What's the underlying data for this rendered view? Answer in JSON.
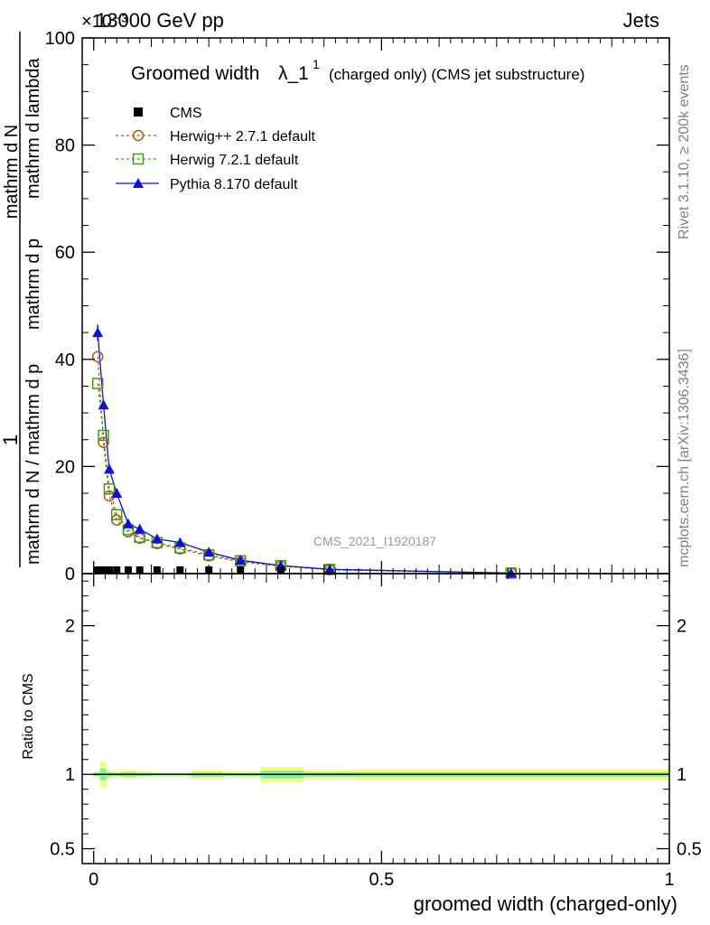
{
  "header": {
    "energy": "13000 GeV pp",
    "process": "Jets",
    "exponent": "×10⁻³"
  },
  "side_labels": {
    "rivet": "Rivet 3.1.10, ≥ 200k events",
    "mcplots": "mcplots.cern.ch [arXiv:1306.3436]"
  },
  "watermark": "CMS_2021_I1920187",
  "chart_data": [
    {
      "type": "line",
      "title": "Groomed width",
      "title_symbol": "λ_1",
      "title_super": "1",
      "title_note": "(charged only) (CMS jet substructure)",
      "ylabel_numerator": "1",
      "ylabel_denominator": "mathrm d N / mathrm d p",
      "ylabel_main": "mathrm d N",
      "ylabel_sub1": "mathrm d p",
      "ylabel_sub2": "mathrm d lambda",
      "ylim": [
        0,
        100
      ],
      "y_ticks": [
        0,
        20,
        40,
        60,
        80,
        100
      ],
      "xlim": [
        -0.02,
        1.0
      ],
      "legend_position": "top-left",
      "legend": [
        {
          "name": "CMS",
          "marker": "square-filled",
          "color": "#000000"
        },
        {
          "name": "Herwig++ 2.7.1 default",
          "marker": "circle-open",
          "color": "#b05a0c",
          "dash": true
        },
        {
          "name": "Herwig 7.2.1 default",
          "marker": "square-open",
          "color": "#4a9a1a",
          "dash": true
        },
        {
          "name": "Pythia 8.170 default",
          "marker": "triangle-filled",
          "color": "#1010d0",
          "dash": false
        }
      ],
      "x": [
        0.007,
        0.017,
        0.027,
        0.04,
        0.06,
        0.08,
        0.11,
        0.15,
        0.2,
        0.255,
        0.325,
        0.41,
        0.725
      ],
      "series": [
        {
          "name": "CMS",
          "values": [
            0.2,
            0.2,
            0.2,
            0.2,
            0.2,
            0.2,
            0.2,
            0.2,
            0.2,
            0.2,
            0.1,
            0.1,
            0.0
          ]
        },
        {
          "name": "Herwig++ 2.7.1 default",
          "values": [
            40.5,
            24.5,
            14.5,
            10.0,
            7.8,
            6.6,
            5.6,
            4.6,
            3.3,
            2.2,
            1.4,
            0.7,
            0.1
          ]
        },
        {
          "name": "Herwig 7.2.1 default",
          "values": [
            35.5,
            25.8,
            15.8,
            11.0,
            8.2,
            6.8,
            5.8,
            4.8,
            3.5,
            2.4,
            1.5,
            0.8,
            0.1
          ]
        },
        {
          "name": "Pythia 8.170 default",
          "values": [
            45.0,
            31.5,
            19.5,
            15.0,
            9.3,
            8.3,
            6.5,
            5.8,
            4.0,
            2.5,
            1.5,
            0.8,
            0.1
          ]
        }
      ],
      "pythia_error_first": 1.5
    },
    {
      "type": "area",
      "ylabel": "Ratio to CMS",
      "ylim": [
        0.4,
        2.35
      ],
      "y_ticks": [
        0.5,
        1,
        2
      ],
      "y_tick_labels": [
        "0.5",
        "1",
        "2"
      ],
      "xlabel": "groomed width (charged-only)",
      "x_ticks": [
        0,
        0.5,
        1
      ],
      "x_tick_labels": [
        "0",
        "0.5",
        "1"
      ],
      "reference": 1.0,
      "bands": [
        {
          "x0": 0.0,
          "x1": 0.011,
          "inner": 0.012,
          "outer": 0.02
        },
        {
          "x0": 0.011,
          "x1": 0.022,
          "inner": 0.04,
          "outer": 0.09
        },
        {
          "x0": 0.022,
          "x1": 0.033,
          "inner": 0.015,
          "outer": 0.03
        },
        {
          "x0": 0.033,
          "x1": 0.047,
          "inner": 0.01,
          "outer": 0.02
        },
        {
          "x0": 0.047,
          "x1": 0.074,
          "inner": 0.015,
          "outer": 0.03
        },
        {
          "x0": 0.074,
          "x1": 0.1,
          "inner": 0.01,
          "outer": 0.02
        },
        {
          "x0": 0.1,
          "x1": 0.135,
          "inner": 0.008,
          "outer": 0.015
        },
        {
          "x0": 0.135,
          "x1": 0.17,
          "inner": 0.008,
          "outer": 0.015
        },
        {
          "x0": 0.17,
          "x1": 0.225,
          "inner": 0.015,
          "outer": 0.03
        },
        {
          "x0": 0.225,
          "x1": 0.29,
          "inner": 0.01,
          "outer": 0.02
        },
        {
          "x0": 0.29,
          "x1": 0.365,
          "inner": 0.025,
          "outer": 0.05
        },
        {
          "x0": 0.365,
          "x1": 0.45,
          "inner": 0.015,
          "outer": 0.03
        },
        {
          "x0": 0.45,
          "x1": 1.0,
          "inner": 0.015,
          "outer": 0.035
        }
      ],
      "band_colors": {
        "inner": "#7ff0a8",
        "outer": "#f4ff7a"
      }
    }
  ]
}
